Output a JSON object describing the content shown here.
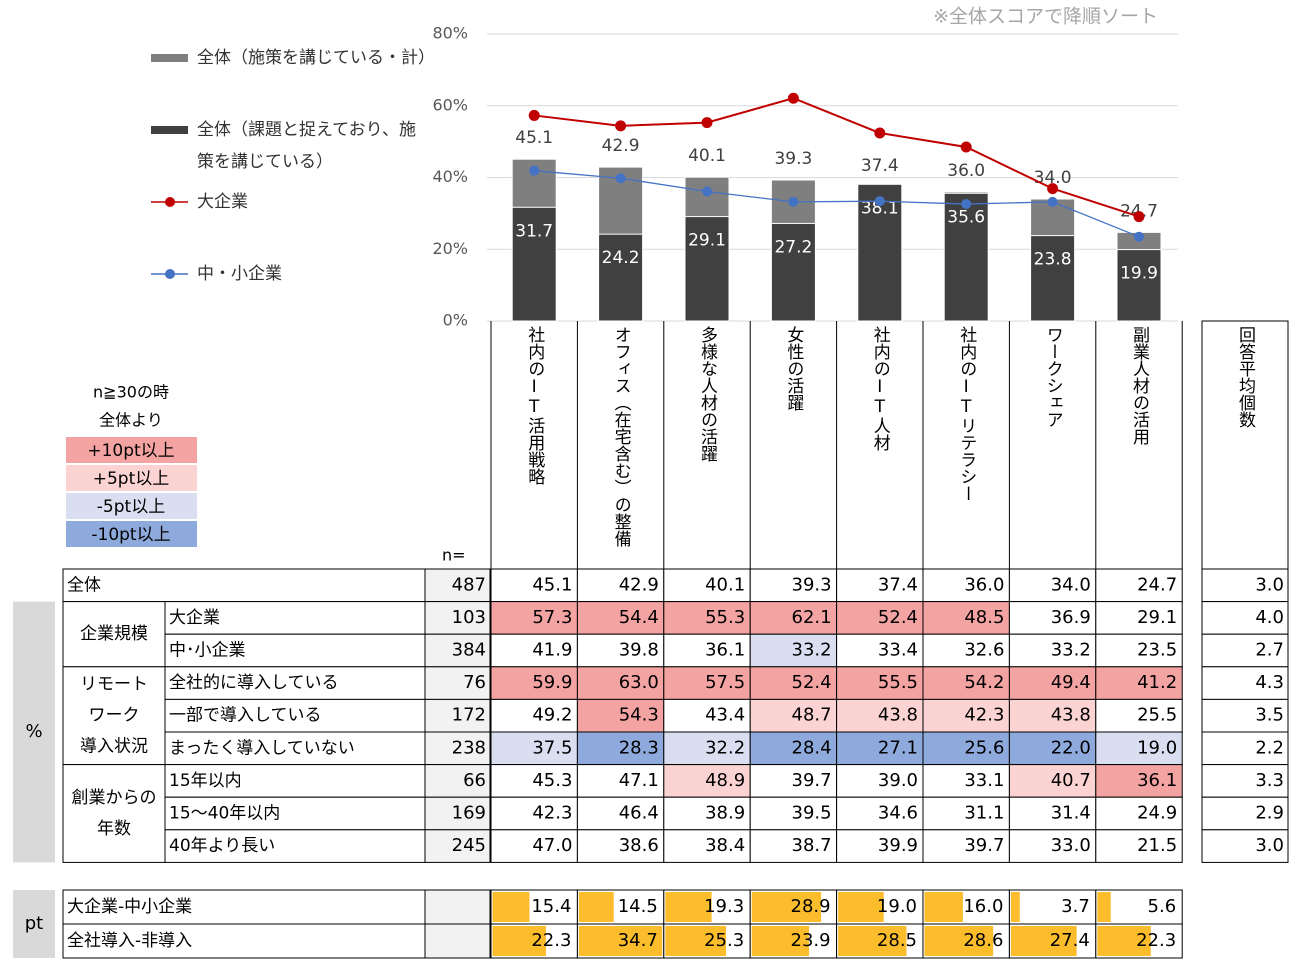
{
  "note": "※全体スコアで降順ソート",
  "chart_data": {
    "type": "bar",
    "categories": [
      "社内のIT活用戦略",
      "オフィス（在宅含む）の整備",
      "多様な人材の活躍",
      "女性の活躍",
      "社内のIT人材",
      "社内のITリテラシー",
      "ワークシェア",
      "副業人材の活用"
    ],
    "ylim": [
      0,
      80
    ],
    "yticks": [
      {
        "value": 0,
        "label": "0%"
      },
      {
        "value": 20,
        "label": "20%"
      },
      {
        "value": 40,
        "label": "40%"
      },
      {
        "value": 60,
        "label": "60%"
      },
      {
        "value": 80,
        "label": "80%"
      }
    ],
    "grid": true,
    "series": [
      {
        "name": "全体（施策を講じている・計）",
        "type": "bar",
        "color": "#7f7f7f",
        "values": [
          45.1,
          42.9,
          40.1,
          39.3,
          37.4,
          36.0,
          34.0,
          24.7
        ],
        "value_labels": [
          "45.1",
          "42.9",
          "40.1",
          "39.3",
          "37.4",
          "36.0",
          "34.0",
          "24.7"
        ]
      },
      {
        "name": "全体（課題と捉えており、施策を講じている）",
        "type": "bar",
        "color": "#404040",
        "values": [
          31.7,
          24.2,
          29.1,
          27.2,
          38.1,
          35.6,
          23.8,
          19.9
        ],
        "value_labels": [
          "31.7",
          "24.2",
          "29.1",
          "27.2",
          "38.1",
          "35.6",
          "23.8",
          "19.9"
        ]
      },
      {
        "name": "大企業",
        "type": "line",
        "color": "#c00000",
        "values": [
          57.3,
          54.4,
          55.3,
          62.1,
          52.4,
          48.5,
          36.9,
          29.1
        ]
      },
      {
        "name": "中・小企業",
        "type": "line",
        "color": "#4472c4",
        "values": [
          41.9,
          39.8,
          36.1,
          33.2,
          33.4,
          32.6,
          33.2,
          23.5
        ]
      }
    ]
  },
  "color_legend": {
    "title": [
      "n≧30の時",
      "全体より"
    ],
    "items": [
      {
        "label": "+10pt以上",
        "color": "#f4a3a3"
      },
      {
        "label": "+5pt以上",
        "color": "#fcd3d3"
      },
      {
        "label": "-5pt以上",
        "color": "#d9dff1"
      },
      {
        "label": "-10pt以上",
        "color": "#8eaadc"
      }
    ]
  },
  "table": {
    "n_header": "n=",
    "average_header": "回答平均個数",
    "unit_label": "%",
    "total": {
      "label": "全体",
      "n": "487",
      "values": [
        "45.1",
        "42.9",
        "40.1",
        "39.3",
        "37.4",
        "36.0",
        "34.0",
        "24.7"
      ],
      "average": "3.0"
    },
    "groups": [
      {
        "label_lines": [
          "企業規模"
        ],
        "rows": [
          {
            "label": "大企業",
            "n": "103",
            "values": [
              "57.3",
              "54.4",
              "55.3",
              "62.1",
              "52.4",
              "48.5",
              "36.9",
              "29.1"
            ],
            "average": "4.0"
          },
          {
            "label": "中･小企業",
            "n": "384",
            "values": [
              "41.9",
              "39.8",
              "36.1",
              "33.2",
              "33.4",
              "32.6",
              "33.2",
              "23.5"
            ],
            "average": "2.7"
          }
        ]
      },
      {
        "label_lines": [
          "リモート",
          "ワーク",
          "導入状況"
        ],
        "rows": [
          {
            "label": "全社的に導入している",
            "n": "76",
            "values": [
              "59.9",
              "63.0",
              "57.5",
              "52.4",
              "55.5",
              "54.2",
              "49.4",
              "41.2"
            ],
            "average": "4.3"
          },
          {
            "label": "一部で導入している",
            "n": "172",
            "values": [
              "49.2",
              "54.3",
              "43.4",
              "48.7",
              "43.8",
              "42.3",
              "43.8",
              "25.5"
            ],
            "average": "3.5"
          },
          {
            "label": "まったく導入していない",
            "n": "238",
            "values": [
              "37.5",
              "28.3",
              "32.2",
              "28.4",
              "27.1",
              "25.6",
              "22.0",
              "19.0"
            ],
            "average": "2.2"
          }
        ]
      },
      {
        "label_lines": [
          "創業からの",
          "年数"
        ],
        "rows": [
          {
            "label": "15年以内",
            "n": "66",
            "values": [
              "45.3",
              "47.1",
              "48.9",
              "39.7",
              "39.0",
              "33.1",
              "40.7",
              "36.1"
            ],
            "average": "3.3"
          },
          {
            "label": "15～40年以内",
            "n": "169",
            "values": [
              "42.3",
              "46.4",
              "38.9",
              "39.5",
              "34.6",
              "31.1",
              "31.4",
              "24.9"
            ],
            "average": "2.9"
          },
          {
            "label": "40年より長い",
            "n": "245",
            "values": [
              "47.0",
              "38.6",
              "38.4",
              "38.7",
              "39.9",
              "39.7",
              "33.0",
              "21.5"
            ],
            "average": "3.0"
          }
        ]
      }
    ]
  },
  "pt_table": {
    "unit_label": "pt",
    "bar_color": "#fbbd2c",
    "rows": [
      {
        "label": "大企業-中小企業",
        "values": [
          15.4,
          14.5,
          19.3,
          28.9,
          19.0,
          16.0,
          3.7,
          5.6
        ],
        "value_labels": [
          "15.4",
          "14.5",
          "19.3",
          "28.9",
          "19.0",
          "16.0",
          "3.7",
          "5.6"
        ]
      },
      {
        "label": "全社導入-非導入",
        "values": [
          22.3,
          34.7,
          25.3,
          23.9,
          28.5,
          28.6,
          27.4,
          22.3
        ],
        "value_labels": [
          "22.3",
          "34.7",
          "25.3",
          "23.9",
          "28.5",
          "28.6",
          "27.4",
          "22.3"
        ]
      }
    ]
  }
}
